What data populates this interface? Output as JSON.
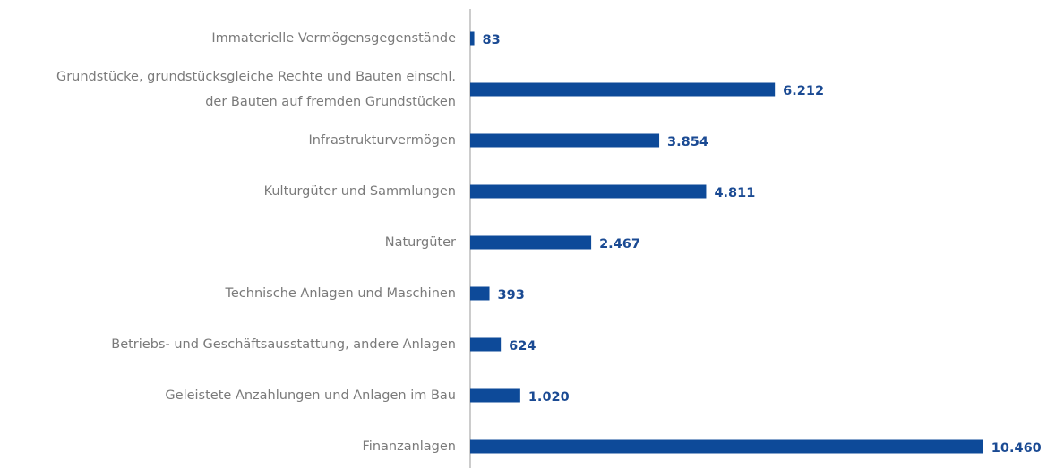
{
  "chart_data": {
    "type": "hbar",
    "categories": [
      "Immaterielle Vermögensgegenstände",
      "Grundstücke, grundstücksgleiche Rechte und Bauten einschl.\nder Bauten auf fremden Grundstücken",
      "Infrastrukturvermögen",
      "Kulturgüter und Sammlungen",
      "Naturgüter",
      "Technische Anlagen und Maschinen",
      "Betriebs- und Geschäftsausstattung, andere Anlagen",
      "Geleistete Anzahlungen und Anlagen im Bau",
      "Finanzanlagen"
    ],
    "values": [
      83,
      6212,
      3854,
      4811,
      2467,
      393,
      624,
      1020,
      10460
    ],
    "value_labels": [
      "83",
      "6.212",
      "3.854",
      "4.811",
      "2.467",
      "393",
      "624",
      "1.020",
      "10.460"
    ],
    "color": "#0d4a99",
    "xlim": [
      0,
      10500
    ]
  }
}
